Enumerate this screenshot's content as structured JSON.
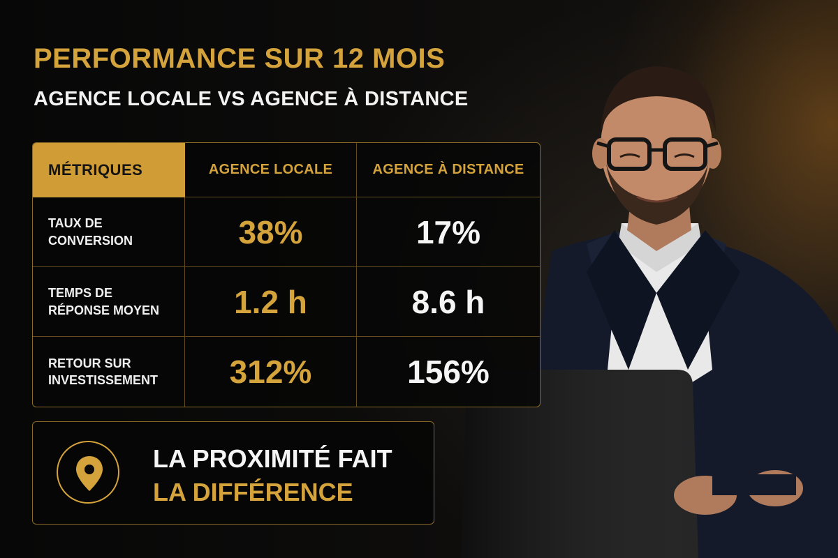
{
  "header": {
    "title": "PERFORMANCE SUR 12 MOIS",
    "subtitle": "AGENCE LOCALE VS AGENCE À DISTANCE"
  },
  "table": {
    "headers": [
      "MÉTRIQUES",
      "AGENCE LOCALE",
      "AGENCE À DISTANCE"
    ],
    "rows": [
      {
        "metric": "TAUX DE\nCONVERSION",
        "local": "38%",
        "remote": "17%"
      },
      {
        "metric": "TEMPS DE\nRÉPONSE MOYEN",
        "local": "1.2 h",
        "remote": "8.6 h"
      },
      {
        "metric": "RETOUR SUR\nINVESTISSEMENT",
        "local": "312%",
        "remote": "156%"
      }
    ]
  },
  "callout": {
    "icon": "location-pin-icon",
    "line1": "LA PROXIMITÉ FAIT",
    "line2": "LA DIFFÉRENCE"
  },
  "colors": {
    "accent": "#d4a33b",
    "background": "#0b0a09",
    "text": "#f5f5f5"
  }
}
